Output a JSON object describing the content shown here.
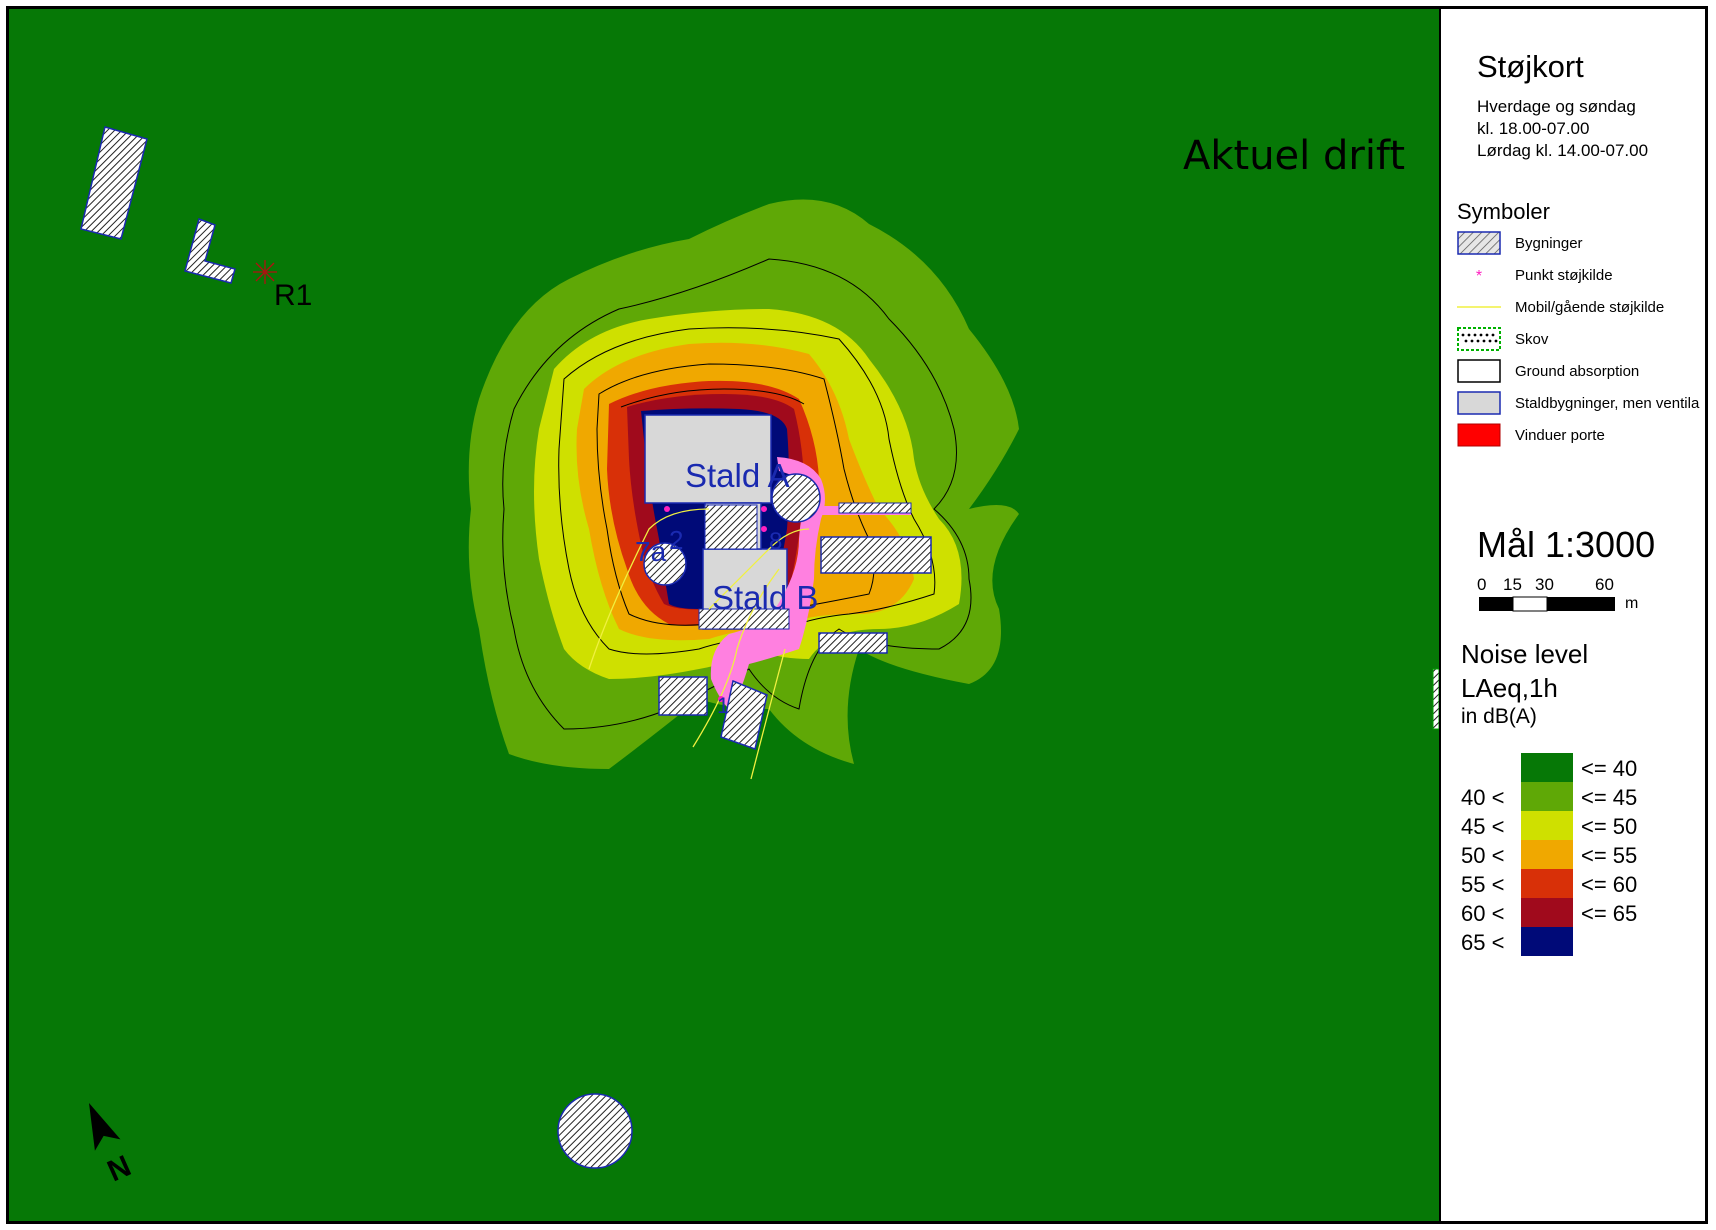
{
  "map": {
    "title": "Aktuel drift",
    "receiver_label": "R1",
    "building_labels": {
      "stald_a": "Stald A",
      "stald_b": "Stald B"
    },
    "source_labels": [
      "7a",
      "2",
      "8",
      "1"
    ],
    "colors": {
      "background": "#067806",
      "band_40_45": "#5fa806",
      "band_45_50": "#cfe000",
      "band_50_55": "#f0a800",
      "band_55_60": "#d83008",
      "band_60_65": "#a00a1c",
      "band_65_plus": "#000a78",
      "building_fill": "#d8d8d8",
      "building_outline": "#1a2ab0",
      "mobile_source_area": "#ff80e0",
      "mobile_source_line": "#f0f040",
      "point_source": "#ff20c0",
      "label_blue": "#1a2ab0"
    },
    "north_arrow_icon": "north-arrow-icon"
  },
  "legend": {
    "title": "Støjkort",
    "subtitle_lines": [
      "Hverdage og søndag",
      "kl. 18.00-07.00",
      "Lørdag kl. 14.00-07.00"
    ],
    "symbols_heading": "Symboler",
    "symbols": [
      {
        "label": "Bygninger",
        "icon": "hatched-building-icon"
      },
      {
        "label": "Punkt støjkilde",
        "icon": "point-source-icon"
      },
      {
        "label": "Mobil/gående støjkilde",
        "icon": "mobile-source-icon"
      },
      {
        "label": "Skov",
        "icon": "forest-icon"
      },
      {
        "label": "Ground absorption",
        "icon": "ground-absorption-icon"
      },
      {
        "label": "Staldbygninger, men ventila",
        "icon": "stable-building-icon"
      },
      {
        "label": "Vinduer porte",
        "icon": "window-door-icon"
      }
    ],
    "scale": {
      "title": "Mål 1:3000",
      "ticks": [
        "0",
        "15",
        "30",
        "60"
      ],
      "unit": "m"
    },
    "noise": {
      "heading1": "Noise level",
      "heading2": "LAeq,1h",
      "heading3": "in dB(A)",
      "bands": [
        {
          "lo": "",
          "hi": "<= 40",
          "color": "#067806"
        },
        {
          "lo": "40 <",
          "hi": "<= 45",
          "color": "#5fa806"
        },
        {
          "lo": "45 <",
          "hi": "<= 50",
          "color": "#cfe000"
        },
        {
          "lo": "50 <",
          "hi": "<= 55",
          "color": "#f0a800"
        },
        {
          "lo": "55 <",
          "hi": "<= 60",
          "color": "#d83008"
        },
        {
          "lo": "60 <",
          "hi": "<= 65",
          "color": "#a00a1c"
        },
        {
          "lo": "65 <",
          "hi": "",
          "color": "#000a78"
        }
      ]
    }
  }
}
